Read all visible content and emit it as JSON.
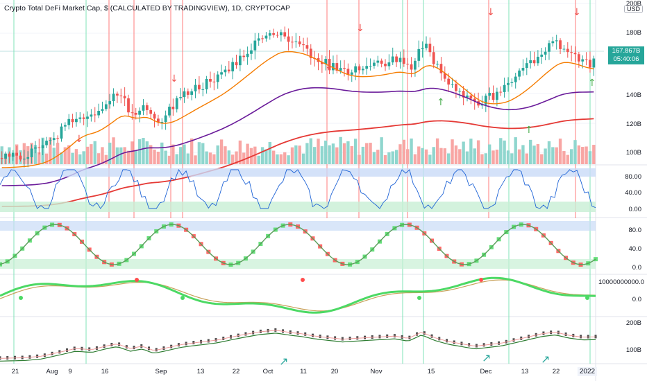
{
  "title": "Crypto Total DeFi Market Cap, $ (CALCULATED BY TRADINGVIEW), 1D, CRYPTOCAP",
  "currency_badge": "USD",
  "price_tag": {
    "value": "167.867B",
    "countdown": "05:40:06",
    "color": "#26a69a"
  },
  "price_axis": [
    "200B",
    "180B",
    "140B",
    "120B",
    "100B"
  ],
  "osc1_axis": [
    "80.00",
    "40.00",
    "0.00"
  ],
  "osc2_axis": [
    "80.0",
    "40.0",
    "0.0"
  ],
  "osc3_axis": [
    "10000000000.0",
    "0.0"
  ],
  "osc4_axis": [
    "200B",
    "100B"
  ],
  "date_axis": [
    "21",
    "Aug",
    "9",
    "16",
    "Sep",
    "13",
    "22",
    "Oct",
    "11",
    "20",
    "Nov",
    "15",
    "Dec",
    "13",
    "22"
  ],
  "date_current": "2022",
  "colors": {
    "up": "#26a69a",
    "down": "#ef5350",
    "ema_fast": "#f57c00",
    "ema_mid": "#6a1b9a",
    "ema_slow": "#e53935",
    "stoch": "#1e63d6",
    "ob_band": "#c9dbf7",
    "os_band": "#c8efd4",
    "green_mark": "#4cd964",
    "red_mark": "#ff4d4d"
  }
}
